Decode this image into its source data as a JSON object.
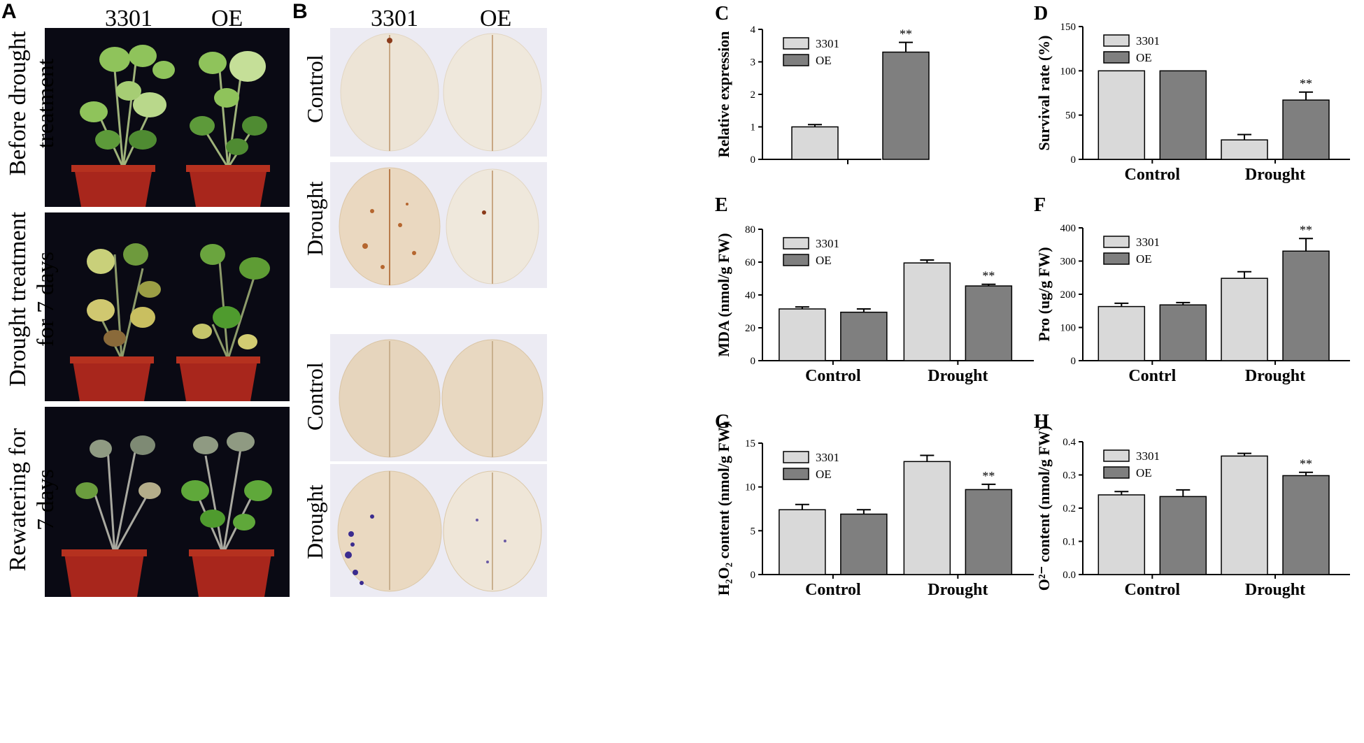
{
  "panelA": {
    "letter": "A",
    "columns": [
      "3301",
      "OE"
    ],
    "rows": [
      {
        "line1": "Before drought",
        "line2": "treatment"
      },
      {
        "line1": "Drought treatment",
        "line2": "for 7 days"
      },
      {
        "line1": "Rewatering for",
        "line2": "7 days"
      }
    ]
  },
  "panelB": {
    "letter": "B",
    "columns": [
      "3301",
      "OE"
    ],
    "rows": [
      "Control",
      "Drought",
      "Control",
      "Drought"
    ]
  },
  "colors": {
    "light_bar": "#d9d9d9",
    "dark_bar": "#7f7f7f",
    "pot": "#a8261c",
    "photo_bg": "#0a0a14",
    "leaf_bg": "#ecebf3"
  },
  "chart_data": [
    {
      "id": "C",
      "type": "bar",
      "ylabel": "Relative expression",
      "categories": [
        ""
      ],
      "series": [
        {
          "name": "3301",
          "values": [
            1.0
          ],
          "errors": [
            0.07
          ],
          "stars": [
            ""
          ]
        },
        {
          "name": "OE",
          "values": [
            3.3
          ],
          "errors": [
            0.3
          ],
          "stars": [
            "**"
          ]
        }
      ],
      "ylim": [
        0,
        4
      ],
      "yticks": [
        "0",
        "1",
        "2",
        "3",
        "4"
      ],
      "legend": "top-left",
      "grid": false
    },
    {
      "id": "D",
      "type": "bar",
      "ylabel": "Survival rate (%)",
      "categories": [
        "Control",
        "Drought"
      ],
      "series": [
        {
          "name": "3301",
          "values": [
            100,
            22
          ],
          "errors": [
            0,
            6
          ],
          "stars": [
            "",
            ""
          ]
        },
        {
          "name": "OE",
          "values": [
            100,
            67
          ],
          "errors": [
            0,
            9
          ],
          "stars": [
            "",
            "**"
          ]
        }
      ],
      "ylim": [
        0,
        150
      ],
      "yticks": [
        "0",
        "50",
        "100",
        "150"
      ],
      "legend": "top-left",
      "grid": false
    },
    {
      "id": "E",
      "type": "bar",
      "ylabel": "MDA (nmol/g FW)",
      "categories": [
        "Control",
        "Drought"
      ],
      "series": [
        {
          "name": "3301",
          "values": [
            31.5,
            59.5
          ],
          "errors": [
            1.2,
            1.8
          ],
          "stars": [
            "",
            ""
          ]
        },
        {
          "name": "OE",
          "values": [
            29.5,
            45.5
          ],
          "errors": [
            2.0,
            1.0
          ],
          "stars": [
            "",
            "**"
          ]
        }
      ],
      "ylim": [
        0,
        80
      ],
      "yticks": [
        "0",
        "20",
        "40",
        "60",
        "80"
      ],
      "legend": "top-left",
      "grid": false
    },
    {
      "id": "F",
      "type": "bar",
      "ylabel": "Pro (ug/g FW)",
      "categories": [
        "Contrl",
        "Drought"
      ],
      "series": [
        {
          "name": "3301",
          "values": [
            163,
            248
          ],
          "errors": [
            10,
            20
          ],
          "stars": [
            "",
            ""
          ]
        },
        {
          "name": "OE",
          "values": [
            168,
            330
          ],
          "errors": [
            7,
            38
          ],
          "stars": [
            "",
            "**"
          ]
        }
      ],
      "ylim": [
        0,
        400
      ],
      "yticks": [
        "0",
        "100",
        "200",
        "300",
        "400"
      ],
      "legend": "top-left",
      "grid": false
    },
    {
      "id": "G",
      "type": "bar",
      "ylabel": "H₂O₂ content (nmol/g FW)",
      "categories": [
        "Control",
        "Drought"
      ],
      "series": [
        {
          "name": "3301",
          "values": [
            7.4,
            12.9
          ],
          "errors": [
            0.6,
            0.7
          ],
          "stars": [
            "",
            ""
          ]
        },
        {
          "name": "OE",
          "values": [
            6.9,
            9.7
          ],
          "errors": [
            0.5,
            0.6
          ],
          "stars": [
            "",
            "**"
          ]
        }
      ],
      "ylim": [
        0,
        15
      ],
      "yticks": [
        "0",
        "5",
        "10",
        "15"
      ],
      "legend": "top-left",
      "grid": false
    },
    {
      "id": "H",
      "type": "bar",
      "ylabel": "O²⁻ content (nmol/g FW)",
      "categories": [
        "Control",
        "Drought"
      ],
      "series": [
        {
          "name": "3301",
          "values": [
            0.24,
            0.357
          ],
          "errors": [
            0.01,
            0.008
          ],
          "stars": [
            "",
            ""
          ]
        },
        {
          "name": "OE",
          "values": [
            0.235,
            0.298
          ],
          "errors": [
            0.02,
            0.01
          ],
          "stars": [
            "",
            "**"
          ]
        }
      ],
      "ylim": [
        0,
        0.4
      ],
      "yticks": [
        "0.0",
        "0.1",
        "0.2",
        "0.3",
        "0.4"
      ],
      "legend": "top-left",
      "grid": false
    }
  ]
}
